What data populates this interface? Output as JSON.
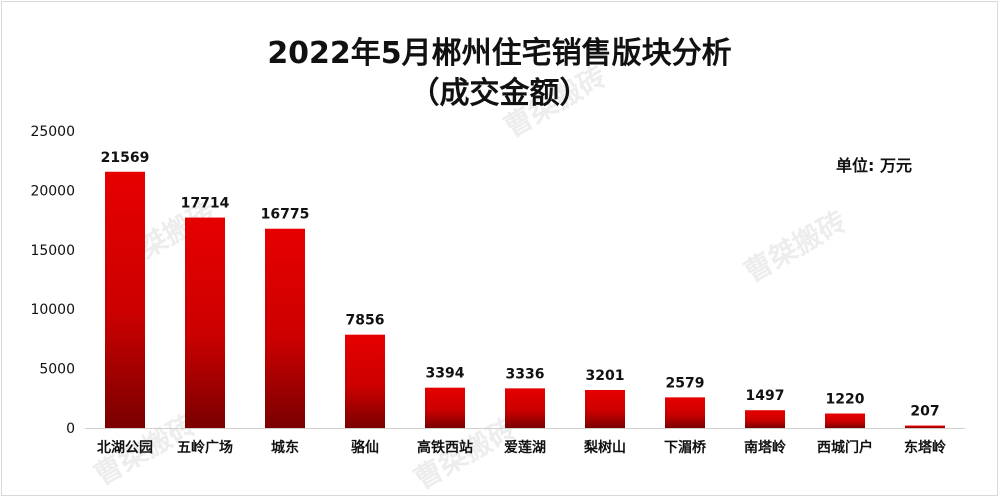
{
  "chart_data": {
    "type": "bar",
    "title": "2022年5月郴州住宅销售版块分析",
    "subtitle": "（成交金额）",
    "unit_label": "单位: 万元",
    "categories": [
      "北湖公园",
      "五岭广场",
      "城东",
      "骆仙",
      "高铁西站",
      "爱莲湖",
      "梨树山",
      "下湄桥",
      "南塔岭",
      "西城门户",
      "东塔岭"
    ],
    "values": [
      21569,
      17714,
      16775,
      7856,
      3394,
      3336,
      3201,
      2579,
      1497,
      1220,
      207
    ],
    "ylim": [
      0,
      25000
    ],
    "yticks": [
      0,
      5000,
      10000,
      15000,
      20000,
      25000
    ],
    "grid": false,
    "legend": "none",
    "colors": {
      "bar_top": "#e60000",
      "bar_bottom": "#7a0000"
    }
  },
  "watermark": "曹桀搬砖"
}
